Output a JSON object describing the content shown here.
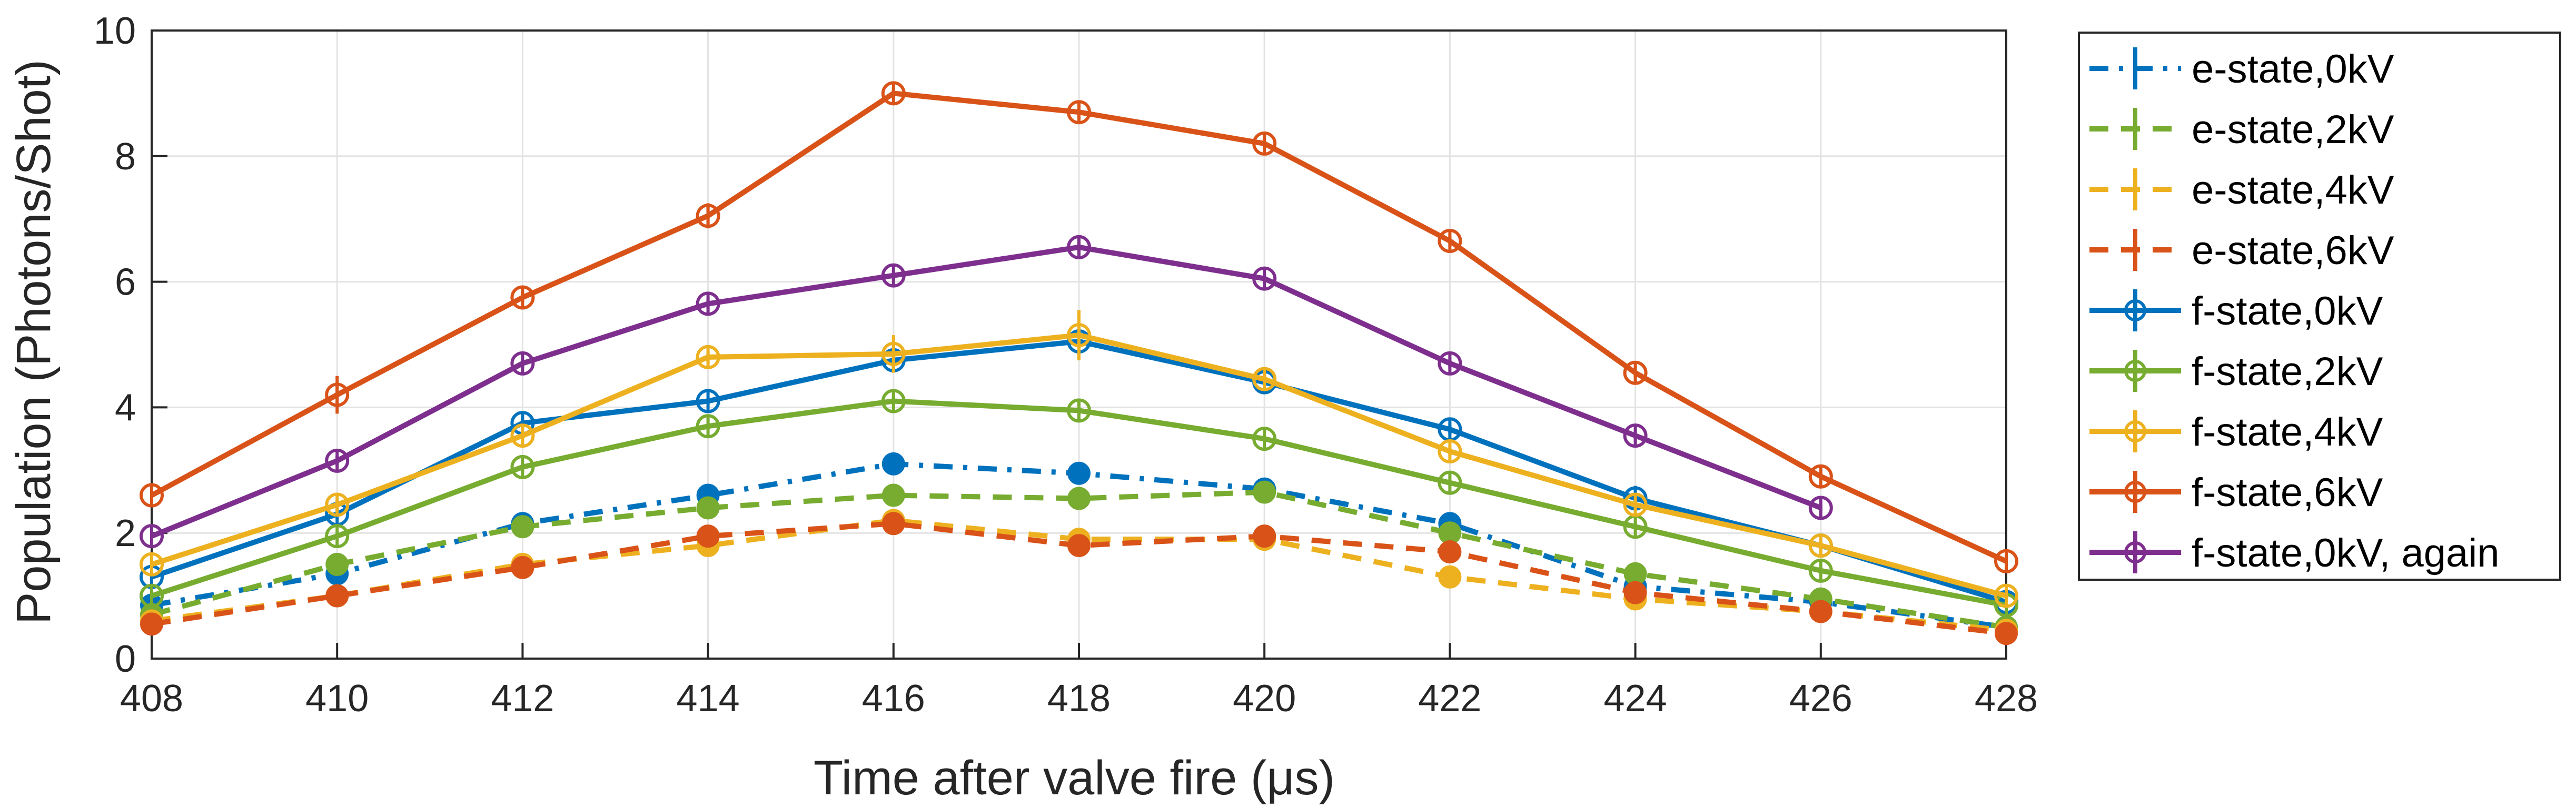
{
  "chart_data": {
    "type": "line",
    "xlabel": "Time after valve fire (μs)",
    "ylabel": "Population (Photons/Shot)",
    "xlim": [
      408,
      428
    ],
    "ylim": [
      0,
      10
    ],
    "xticks": [
      "408",
      "410",
      "412",
      "414",
      "416",
      "418",
      "420",
      "422",
      "424",
      "426",
      "428"
    ],
    "yticks": [
      "0",
      "2",
      "4",
      "6",
      "8",
      "10"
    ],
    "grid": true,
    "legend_position": "outside-right",
    "x": [
      408,
      410,
      412,
      414,
      416,
      418,
      420,
      422,
      424,
      426,
      428
    ],
    "series": [
      {
        "name": "e-state,0kV",
        "color": "#0072BD",
        "dash": "dashdot",
        "marker": "filled",
        "values": [
          0.85,
          1.35,
          2.15,
          2.6,
          3.1,
          2.95,
          2.7,
          2.15,
          1.15,
          0.9,
          0.5
        ],
        "errors": [
          0.05,
          0.05,
          0.05,
          0.08,
          0.08,
          0.08,
          0.08,
          0.08,
          0.3,
          0.05,
          0.05
        ]
      },
      {
        "name": "e-state,2kV",
        "color": "#77AC30",
        "dash": "dash",
        "marker": "filled",
        "values": [
          0.7,
          1.5,
          2.1,
          2.4,
          2.6,
          2.55,
          2.65,
          2.0,
          1.35,
          0.95,
          0.5
        ],
        "errors": [
          0.05,
          0.05,
          0.05,
          0.05,
          0.05,
          0.05,
          0.05,
          0.05,
          0.05,
          0.05,
          0.05
        ]
      },
      {
        "name": "e-state,4kV",
        "color": "#EDB120",
        "dash": "dash",
        "marker": "filled",
        "values": [
          0.6,
          1.0,
          1.5,
          1.8,
          2.2,
          1.9,
          1.9,
          1.3,
          0.95,
          0.75,
          0.45
        ],
        "errors": [
          0.05,
          0.05,
          0.05,
          0.05,
          0.05,
          0.05,
          0.05,
          0.05,
          0.05,
          0.05,
          0.05
        ]
      },
      {
        "name": "e-state,6kV",
        "color": "#D95319",
        "dash": "dash",
        "marker": "filled",
        "values": [
          0.55,
          1.0,
          1.45,
          1.95,
          2.15,
          1.8,
          1.95,
          1.7,
          1.05,
          0.75,
          0.4
        ],
        "errors": [
          0.05,
          0.05,
          0.05,
          0.05,
          0.05,
          0.05,
          0.05,
          0.05,
          0.05,
          0.05,
          0.05
        ]
      },
      {
        "name": "f-state,0kV",
        "color": "#0072BD",
        "dash": "solid",
        "marker": "open",
        "values": [
          1.3,
          2.3,
          3.75,
          4.1,
          4.75,
          5.05,
          4.4,
          3.65,
          2.55,
          1.8,
          0.9
        ],
        "errors": [
          0.05,
          0.05,
          0.05,
          0.05,
          0.15,
          0.15,
          0.08,
          0.08,
          0.2,
          0.05,
          0.05
        ]
      },
      {
        "name": "f-state,2kV",
        "color": "#77AC30",
        "dash": "solid",
        "marker": "open",
        "values": [
          1.0,
          1.95,
          3.05,
          3.7,
          4.1,
          3.95,
          3.5,
          2.8,
          2.1,
          1.4,
          0.85
        ],
        "errors": [
          0.05,
          0.05,
          0.08,
          0.05,
          0.08,
          0.05,
          0.05,
          0.05,
          0.05,
          0.05,
          0.05
        ]
      },
      {
        "name": "f-state,4kV",
        "color": "#EDB120",
        "dash": "solid",
        "marker": "open",
        "values": [
          1.5,
          2.45,
          3.55,
          4.8,
          4.85,
          5.15,
          4.45,
          3.3,
          2.45,
          1.8,
          1.0
        ],
        "errors": [
          0.05,
          0.08,
          0.08,
          0.1,
          0.3,
          0.4,
          0.08,
          0.08,
          0.08,
          0.05,
          0.05
        ]
      },
      {
        "name": "f-state,6kV",
        "color": "#D95319",
        "dash": "solid",
        "marker": "open",
        "values": [
          2.6,
          4.2,
          5.75,
          7.05,
          9.0,
          8.7,
          8.2,
          6.65,
          4.55,
          2.9,
          1.55
        ],
        "errors": [
          0.05,
          0.3,
          0.08,
          0.2,
          0.08,
          0.08,
          0.08,
          0.08,
          0.08,
          0.05,
          0.05
        ]
      },
      {
        "name": "f-state,0kV, again",
        "color": "#7E2F8E",
        "dash": "solid",
        "marker": "open",
        "values": [
          1.95,
          3.15,
          4.7,
          5.65,
          6.1,
          6.55,
          6.05,
          4.7,
          3.55,
          2.4,
          null
        ],
        "errors": [
          0.05,
          0.08,
          0.08,
          0.08,
          0.08,
          0.08,
          0.08,
          0.08,
          0.08,
          0.05,
          null
        ]
      }
    ]
  }
}
